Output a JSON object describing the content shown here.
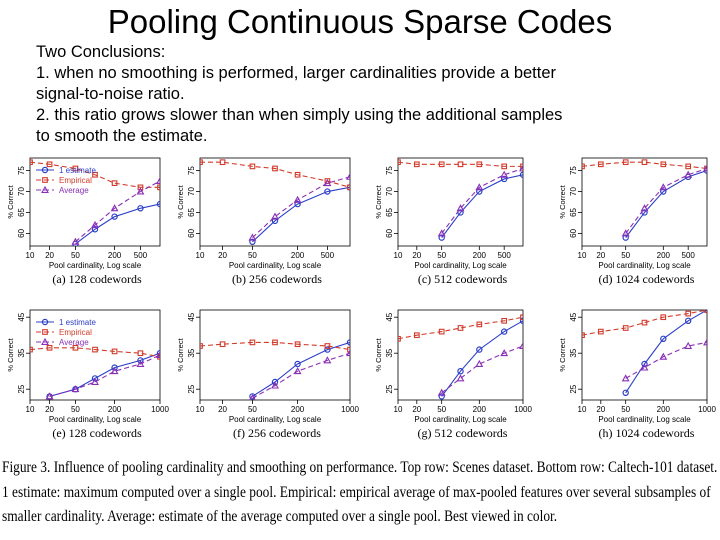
{
  "slide": {
    "title": "Pooling Continuous Sparse Codes",
    "bullets": [
      "Two Conclusions:",
      "1. when no smoothing is performed, larger cardinalities provide a better",
      "signal-to-noise ratio.",
      "2. this ratio grows slower than when simply using the additional samples",
      "to smooth the estimate."
    ]
  },
  "figure": {
    "caption_lines": [
      "Figure 3.  Influence of pooling cardinality and smoothing on performance. Top row: Scenes dataset. Bottom row: Caltech-101 dataset.",
      "1 estimate: maximum computed over a single pool.  Empirical: empirical average of max-pooled features over several subsamples of",
      "smaller cardinality. Average: estimate of the average computed over a single pool. Best viewed in color."
    ],
    "colors": {
      "one_estimate": "#2c3fc8",
      "empirical": "#d23a2a",
      "average": "#8a2fb5"
    }
  },
  "chart_data": [
    {
      "type": "line",
      "subtitle": "(a) 128 codewords",
      "xlabel": "Pool cardinality, Log scale",
      "ylabel": "% Correct",
      "x": [
        10,
        20,
        50,
        100,
        200,
        500,
        1000
      ],
      "xticks": [
        "10",
        "20",
        "50",
        "200",
        "500"
      ],
      "xlim": [
        10,
        1000
      ],
      "yticks": [
        60,
        65,
        70,
        75
      ],
      "ylim": [
        57,
        78
      ],
      "legend": [
        "1 estimate",
        "Empirical",
        "Average"
      ],
      "series": [
        {
          "name": "1 estimate",
          "values": [
            null,
            null,
            57.5,
            61,
            64,
            66,
            67
          ]
        },
        {
          "name": "Empirical",
          "values": [
            77,
            76.5,
            75.5,
            74,
            72,
            71,
            71
          ]
        },
        {
          "name": "Average",
          "values": [
            null,
            null,
            58,
            62,
            66,
            70,
            72.5
          ]
        }
      ]
    },
    {
      "type": "line",
      "subtitle": "(b) 256 codewords",
      "xlabel": "Pool cardinality, Log scale",
      "ylabel": "% Correct",
      "x": [
        10,
        20,
        50,
        100,
        200,
        500,
        1000
      ],
      "xticks": [
        "10",
        "20",
        "50",
        "200",
        "500"
      ],
      "xlim": [
        10,
        1000
      ],
      "yticks": [
        60,
        65,
        70,
        75
      ],
      "ylim": [
        57,
        78
      ],
      "legend": [],
      "series": [
        {
          "name": "1 estimate",
          "values": [
            null,
            null,
            58,
            63,
            67,
            70,
            71
          ]
        },
        {
          "name": "Empirical",
          "values": [
            77,
            77,
            76,
            75.5,
            74,
            72.5,
            71
          ]
        },
        {
          "name": "Average",
          "values": [
            null,
            null,
            59,
            64,
            68,
            72,
            73.5
          ]
        }
      ]
    },
    {
      "type": "line",
      "subtitle": "(c) 512 codewords",
      "xlabel": "Pool cardinality, Log scale",
      "ylabel": "% Correct",
      "x": [
        10,
        20,
        50,
        100,
        200,
        500,
        1000
      ],
      "xticks": [
        "10",
        "20",
        "50",
        "200",
        "500"
      ],
      "xlim": [
        10,
        1000
      ],
      "yticks": [
        60,
        65,
        70,
        75
      ],
      "ylim": [
        57,
        78
      ],
      "legend": [],
      "series": [
        {
          "name": "1 estimate",
          "values": [
            null,
            null,
            59,
            65,
            70,
            73,
            74
          ]
        },
        {
          "name": "Empirical",
          "values": [
            77,
            76.5,
            76.5,
            76.5,
            76.5,
            76,
            76
          ]
        },
        {
          "name": "Average",
          "values": [
            null,
            null,
            60,
            66,
            71,
            74,
            75.5
          ]
        }
      ]
    },
    {
      "type": "line",
      "subtitle": "(d) 1024 codewords",
      "xlabel": "Pool cardinality, Log scale",
      "ylabel": "% Correct",
      "x": [
        10,
        20,
        50,
        100,
        200,
        500,
        1000
      ],
      "xticks": [
        "10",
        "20",
        "50",
        "200",
        "500"
      ],
      "xlim": [
        10,
        1000
      ],
      "yticks": [
        60,
        65,
        70,
        75
      ],
      "ylim": [
        57,
        78
      ],
      "legend": [],
      "series": [
        {
          "name": "1 estimate",
          "values": [
            null,
            null,
            59,
            65,
            70,
            73.5,
            75
          ]
        },
        {
          "name": "Empirical",
          "values": [
            76,
            76.5,
            77,
            77,
            76.5,
            76,
            75.5
          ]
        },
        {
          "name": "Average",
          "values": [
            null,
            null,
            60,
            66,
            71,
            74,
            75.5
          ]
        }
      ]
    },
    {
      "type": "line",
      "subtitle": "(e) 128 codewords",
      "xlabel": "Pool cardinality, Log scale",
      "ylabel": "% Correct",
      "x": [
        10,
        20,
        50,
        100,
        200,
        500,
        1000
      ],
      "xticks": [
        "10",
        "20",
        "50",
        "200",
        "1000"
      ],
      "xlim": [
        10,
        1000
      ],
      "yticks": [
        25,
        35,
        45
      ],
      "ylim": [
        22,
        47
      ],
      "legend": [
        "1 estimate",
        "Empirical",
        "Average"
      ],
      "series": [
        {
          "name": "1 estimate",
          "values": [
            null,
            23,
            25,
            28,
            31,
            33,
            35
          ]
        },
        {
          "name": "Empirical",
          "values": [
            36,
            36.5,
            36.5,
            36,
            35.5,
            35,
            34
          ]
        },
        {
          "name": "Average",
          "values": [
            null,
            23,
            25,
            27,
            30,
            32,
            34.5
          ]
        }
      ]
    },
    {
      "type": "line",
      "subtitle": "(f) 256 codewords",
      "xlabel": "Pool cardinality, Log scale",
      "ylabel": "% Correct",
      "x": [
        10,
        20,
        50,
        100,
        200,
        500,
        1000
      ],
      "xticks": [
        "10",
        "20",
        "50",
        "200",
        "1000"
      ],
      "xlim": [
        10,
        1000
      ],
      "yticks": [
        25,
        35,
        45
      ],
      "ylim": [
        22,
        47
      ],
      "legend": [],
      "series": [
        {
          "name": "1 estimate",
          "values": [
            null,
            null,
            23,
            27,
            32,
            36,
            38
          ]
        },
        {
          "name": "Empirical",
          "values": [
            37,
            37.5,
            38,
            38,
            37.5,
            37,
            36
          ]
        },
        {
          "name": "Average",
          "values": [
            null,
            null,
            22.5,
            26,
            30,
            33,
            35
          ]
        }
      ]
    },
    {
      "type": "line",
      "subtitle": "(g) 512 codewords",
      "xlabel": "Pool cardinality, Log scale",
      "ylabel": "% Correct",
      "x": [
        10,
        20,
        50,
        100,
        200,
        500,
        1000
      ],
      "xticks": [
        "10",
        "20",
        "50",
        "200",
        "1000"
      ],
      "xlim": [
        10,
        1000
      ],
      "yticks": [
        25,
        35,
        45
      ],
      "ylim": [
        22,
        47
      ],
      "legend": [],
      "series": [
        {
          "name": "1 estimate",
          "values": [
            null,
            null,
            23,
            30,
            36,
            41,
            44
          ]
        },
        {
          "name": "Empirical",
          "values": [
            39,
            40,
            41,
            42,
            43,
            44,
            45
          ]
        },
        {
          "name": "Average",
          "values": [
            null,
            null,
            24,
            28,
            32,
            35,
            37
          ]
        }
      ]
    },
    {
      "type": "line",
      "subtitle": "(h) 1024 codewords",
      "xlabel": "Pool cardinality, Log scale",
      "ylabel": "% Correct",
      "x": [
        10,
        20,
        50,
        100,
        200,
        500,
        1000
      ],
      "xticks": [
        "10",
        "20",
        "50",
        "200",
        "1000"
      ],
      "xlim": [
        10,
        1000
      ],
      "yticks": [
        25,
        35,
        45
      ],
      "ylim": [
        22,
        47
      ],
      "legend": [],
      "series": [
        {
          "name": "1 estimate",
          "values": [
            null,
            null,
            24,
            32,
            39,
            44,
            47
          ]
        },
        {
          "name": "Empirical",
          "values": [
            40,
            41,
            42,
            43.5,
            45,
            46,
            47
          ]
        },
        {
          "name": "Average",
          "values": [
            null,
            null,
            28,
            31,
            34,
            37,
            38
          ]
        }
      ]
    }
  ]
}
